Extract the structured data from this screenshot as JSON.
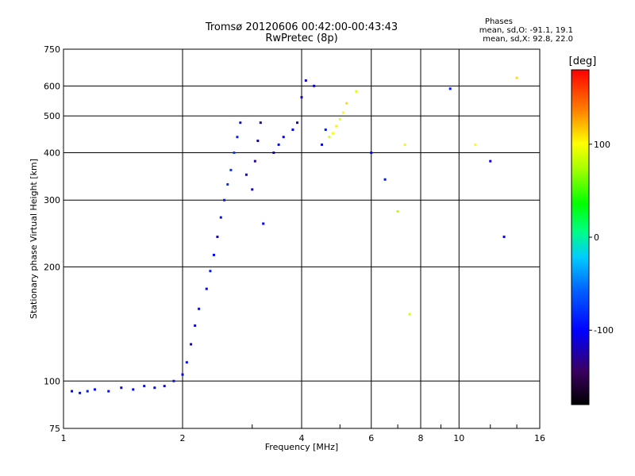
{
  "header": {
    "title_line1": "Tromsø 20120606 00:42:00-00:43:43",
    "title_line2": "RwPretec (8p)",
    "phase_heading": "Phases",
    "phase_o": "mean, sd,O: -91.1, 19.1",
    "phase_x": "mean, sd,X: 92.8, 22.0"
  },
  "colorbar": {
    "unit": "[deg]",
    "ticks": [
      "100",
      "0",
      "-100"
    ],
    "range": [
      -180,
      180
    ]
  },
  "chart_data": {
    "type": "scatter",
    "xlabel": "Frequency [MHz]",
    "ylabel": "Stationary phase Virtual Height [km]",
    "x_scale": "log",
    "y_scale": "log",
    "xlim": [
      1,
      16
    ],
    "ylim": [
      75,
      750
    ],
    "x_ticks": [
      "1",
      "2",
      "4",
      "6",
      "8",
      "10",
      "16"
    ],
    "y_ticks": [
      "75",
      "100",
      "200",
      "300",
      "400",
      "500",
      "600",
      "750"
    ],
    "grid": true,
    "series": [
      {
        "points": [
          [
            1.05,
            94,
            -100
          ],
          [
            1.1,
            93,
            -95
          ],
          [
            1.15,
            94,
            -90
          ],
          [
            1.2,
            95,
            -100
          ],
          [
            1.3,
            94,
            -95
          ],
          [
            1.4,
            96,
            -110
          ],
          [
            1.5,
            95,
            -100
          ],
          [
            1.6,
            97,
            -95
          ],
          [
            1.7,
            96,
            -100
          ],
          [
            1.8,
            97,
            -105
          ],
          [
            1.9,
            100,
            -90
          ],
          [
            2.0,
            104,
            -100
          ],
          [
            2.05,
            112,
            -95
          ],
          [
            2.1,
            125,
            -110
          ],
          [
            2.15,
            140,
            -100
          ],
          [
            2.2,
            155,
            -95
          ],
          [
            2.3,
            175,
            -100
          ],
          [
            2.35,
            195,
            -90
          ],
          [
            2.4,
            215,
            -100
          ],
          [
            2.45,
            240,
            -110
          ],
          [
            2.5,
            270,
            -95
          ],
          [
            2.55,
            300,
            -90
          ],
          [
            2.6,
            330,
            -80
          ],
          [
            2.65,
            360,
            -75
          ],
          [
            2.7,
            400,
            -70
          ],
          [
            2.75,
            440,
            -85
          ],
          [
            2.8,
            480,
            -95
          ],
          [
            2.9,
            350,
            -110
          ],
          [
            3.0,
            320,
            -120
          ],
          [
            3.05,
            380,
            -130
          ],
          [
            3.1,
            430,
            -125
          ],
          [
            3.15,
            480,
            -120
          ],
          [
            3.2,
            260,
            -100
          ],
          [
            3.4,
            400,
            -110
          ],
          [
            3.5,
            420,
            -100
          ],
          [
            3.6,
            440,
            -105
          ],
          [
            3.8,
            460,
            -100
          ],
          [
            3.9,
            480,
            -110
          ],
          [
            4.0,
            560,
            -115
          ],
          [
            4.1,
            620,
            -120
          ],
          [
            4.3,
            600,
            -110
          ],
          [
            4.5,
            420,
            -100
          ],
          [
            4.6,
            460,
            -90
          ],
          [
            4.7,
            440,
            90
          ],
          [
            4.8,
            450,
            100
          ],
          [
            4.9,
            470,
            105
          ],
          [
            5.0,
            490,
            95
          ],
          [
            5.1,
            510,
            100
          ],
          [
            5.2,
            540,
            110
          ],
          [
            5.5,
            580,
            90
          ],
          [
            6.0,
            400,
            -100
          ],
          [
            6.5,
            340,
            -90
          ],
          [
            7.0,
            280,
            80
          ],
          [
            7.3,
            420,
            95
          ],
          [
            7.5,
            150,
            90
          ],
          [
            9.5,
            590,
            -90
          ],
          [
            11,
            420,
            100
          ],
          [
            12,
            380,
            -110
          ],
          [
            13,
            240,
            -100
          ],
          [
            14,
            630,
            110
          ]
        ]
      }
    ]
  }
}
